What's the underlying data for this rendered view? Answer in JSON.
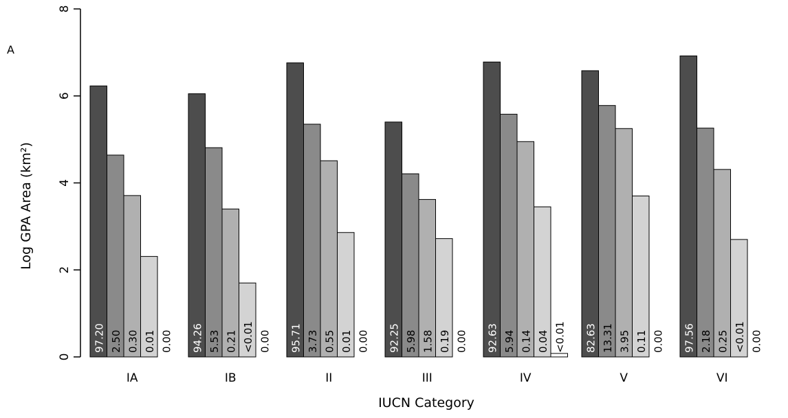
{
  "panel_label": "A",
  "chart_data": {
    "type": "bar",
    "xlabel": "IUCN Category",
    "ylabel": "Log GPA Area (km²)",
    "ylim": [
      0,
      8
    ],
    "yticks": [
      0,
      2,
      4,
      6,
      8
    ],
    "grid": false,
    "colors": [
      "#4d4d4d",
      "#8a8a8a",
      "#b0b0b0",
      "#d3d3d3",
      "#ffffff"
    ],
    "categories": [
      "IA",
      "IB",
      "II",
      "III",
      "IV",
      "V",
      "VI"
    ],
    "groups": [
      {
        "category": "IA",
        "values": [
          6.23,
          4.64,
          3.71,
          2.31,
          0.0
        ],
        "labels": [
          "97.20",
          "2.50",
          "0.30",
          "0.01",
          "0.00"
        ]
      },
      {
        "category": "IB",
        "values": [
          6.05,
          4.81,
          3.4,
          1.7,
          0.0
        ],
        "labels": [
          "94.26",
          "5.53",
          "0.21",
          "<0.01",
          "0.00"
        ]
      },
      {
        "category": "II",
        "values": [
          6.76,
          5.35,
          4.51,
          2.86,
          0.0
        ],
        "labels": [
          "95.71",
          "3.73",
          "0.55",
          "0.01",
          "0.00"
        ]
      },
      {
        "category": "III",
        "values": [
          5.4,
          4.21,
          3.62,
          2.72,
          0.0
        ],
        "labels": [
          "92.25",
          "5.98",
          "1.58",
          "0.19",
          "0.00"
        ]
      },
      {
        "category": "IV",
        "values": [
          6.78,
          5.58,
          4.95,
          3.45,
          0.08
        ],
        "labels": [
          "92.63",
          "5.94",
          "0.14",
          "0.04",
          "<0.01"
        ]
      },
      {
        "category": "V",
        "values": [
          6.58,
          5.78,
          5.25,
          3.7,
          0.0
        ],
        "labels": [
          "82.63",
          "13.31",
          "3.95",
          "0.11",
          "0.00"
        ]
      },
      {
        "category": "VI",
        "values": [
          6.92,
          5.26,
          4.31,
          2.7,
          0.0
        ],
        "labels": [
          "97.56",
          "2.18",
          "0.25",
          "<0.01",
          "0.00"
        ]
      }
    ]
  }
}
